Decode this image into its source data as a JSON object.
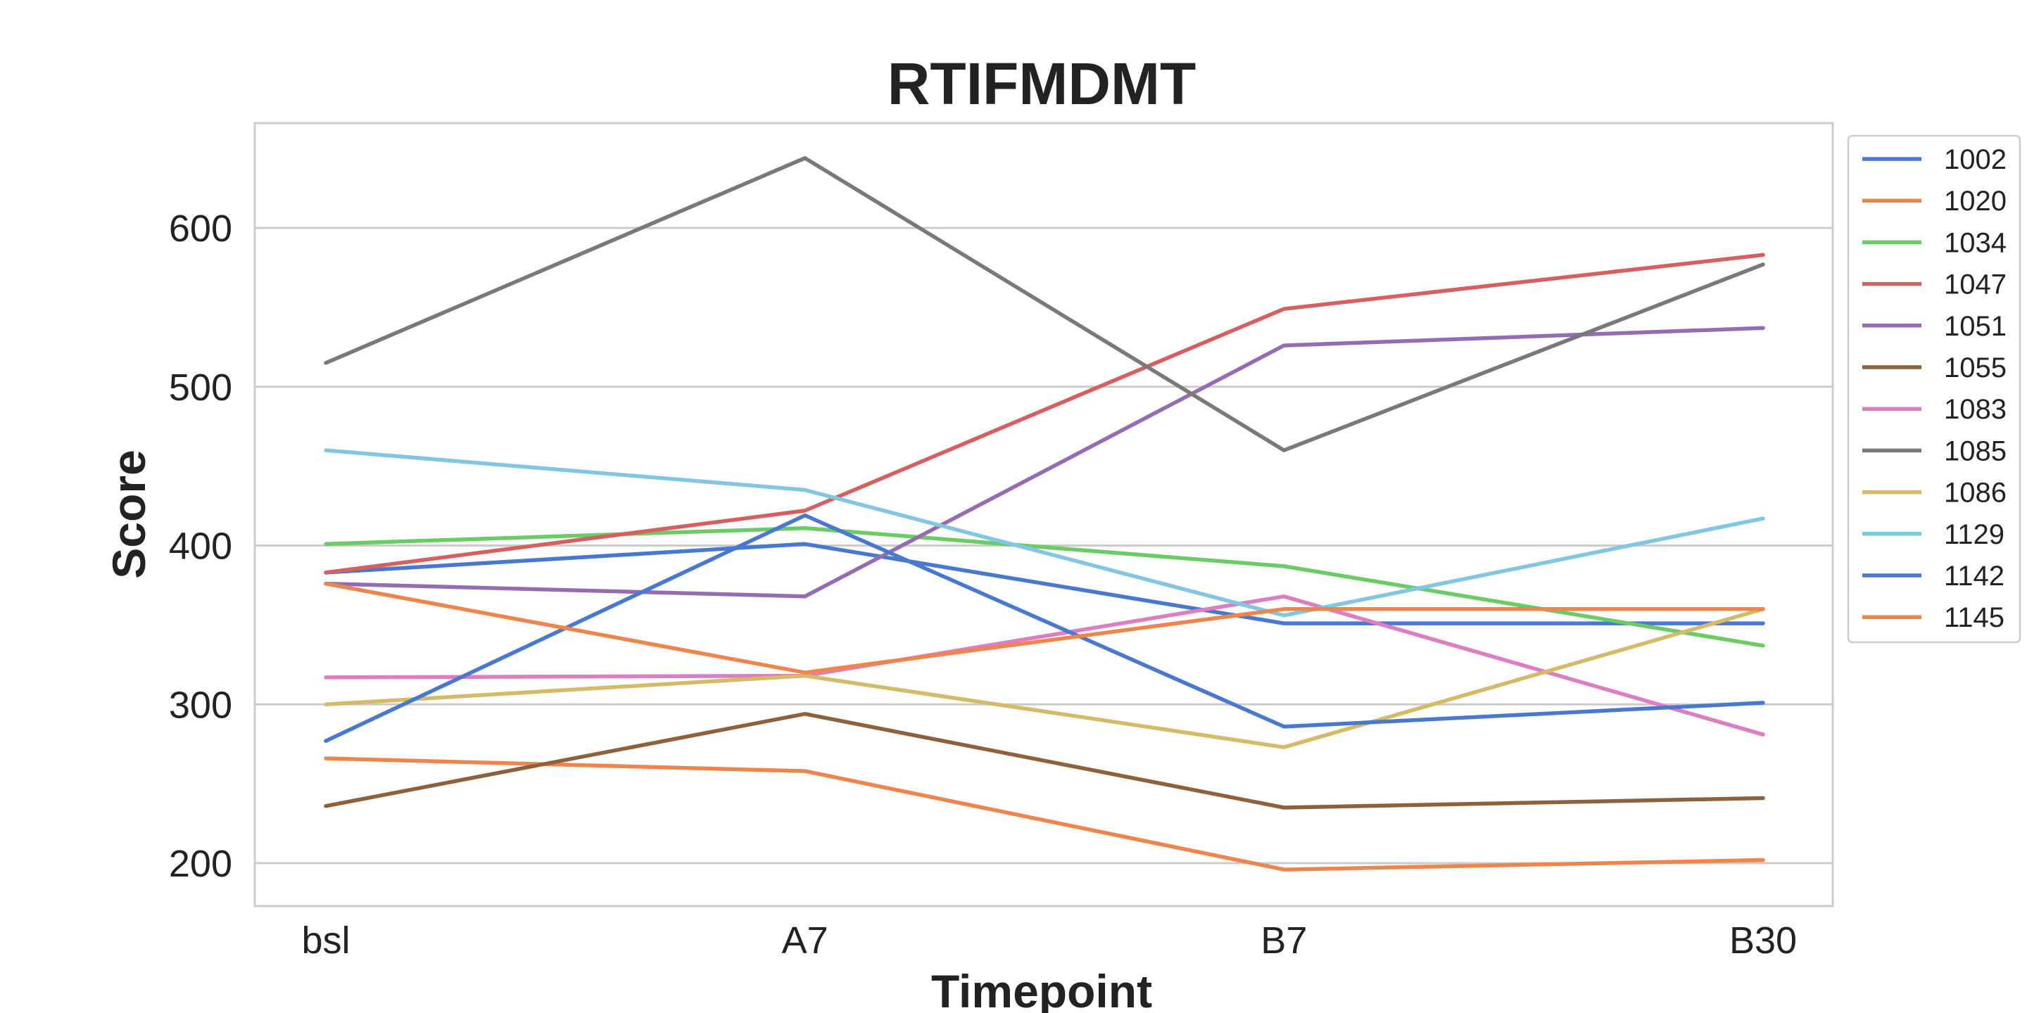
{
  "chart_data": {
    "type": "line",
    "title": "RTIFMDMT",
    "xlabel": "Timepoint",
    "ylabel": "Score",
    "categories": [
      "bsl",
      "A7",
      "B7",
      "B30"
    ],
    "ylim": [
      173,
      666
    ],
    "yticks": [
      200,
      300,
      400,
      500,
      600
    ],
    "grid": "horizontal",
    "legend_position": "right",
    "series": [
      {
        "name": "1002",
        "color": "#4878d0",
        "values": [
          383,
          401,
          351,
          351
        ]
      },
      {
        "name": "1020",
        "color": "#ee854a",
        "values": [
          266,
          258,
          196,
          202
        ]
      },
      {
        "name": "1034",
        "color": "#6acc64",
        "values": [
          401,
          411,
          387,
          337
        ]
      },
      {
        "name": "1047",
        "color": "#d65f5f",
        "values": [
          383,
          422,
          549,
          583
        ]
      },
      {
        "name": "1051",
        "color": "#956cb4",
        "values": [
          376,
          368,
          526,
          537
        ]
      },
      {
        "name": "1055",
        "color": "#8c613c",
        "values": [
          236,
          294,
          235,
          241
        ]
      },
      {
        "name": "1083",
        "color": "#dc7ec0",
        "values": [
          317,
          318,
          368,
          281
        ]
      },
      {
        "name": "1085",
        "color": "#797979",
        "values": [
          515,
          644,
          460,
          577
        ]
      },
      {
        "name": "1086",
        "color": "#d5bb67",
        "values": [
          300,
          318,
          273,
          360
        ]
      },
      {
        "name": "1129",
        "color": "#82c6e2",
        "values": [
          460,
          435,
          356,
          417
        ]
      },
      {
        "name": "1142",
        "color": "#4878d0",
        "values": [
          277,
          419,
          286,
          301
        ]
      },
      {
        "name": "1145",
        "color": "#ee854a",
        "values": [
          376,
          320,
          360,
          360
        ]
      }
    ]
  }
}
